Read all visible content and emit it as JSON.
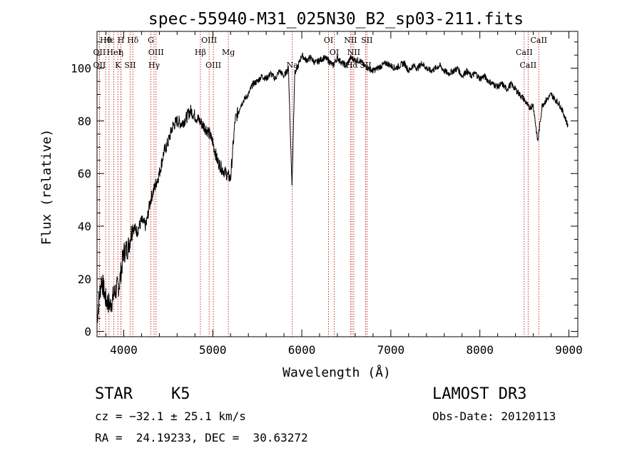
{
  "chart_data": {
    "type": "line",
    "title": "spec-55940-M31_025N30_B2_sp03-211.fits",
    "xlabel": "Wavelength (Å)",
    "ylabel": "Flux (relative)",
    "xlim": [
      3700,
      9100
    ],
    "ylim": [
      -2,
      114
    ],
    "xticks": [
      4000,
      5000,
      6000,
      7000,
      8000,
      9000
    ],
    "yticks": [
      0,
      20,
      40,
      60,
      80,
      100
    ],
    "grid": false,
    "series": [
      {
        "x": [
          3700,
          3750,
          3800,
          3850,
          3900,
          3950,
          4000,
          4050,
          4100,
          4150,
          4200,
          4250,
          4300,
          4350,
          4400,
          4450,
          4500,
          4550,
          4600,
          4650,
          4700,
          4750,
          4800,
          4850,
          4900,
          4950,
          5000,
          5050,
          5100,
          5150,
          5200,
          5250,
          5300,
          5350,
          5400,
          5450,
          5500,
          5550,
          5600,
          5650,
          5700,
          5750,
          5800,
          5850,
          5890,
          5920,
          5950,
          6000,
          6050,
          6100,
          6150,
          6200,
          6250,
          6300,
          6350,
          6400,
          6450,
          6500,
          6550,
          6600,
          6650,
          6700,
          6750,
          6800,
          6850,
          6900,
          6950,
          7000,
          7050,
          7100,
          7150,
          7200,
          7250,
          7300,
          7350,
          7400,
          7450,
          7500,
          7550,
          7600,
          7650,
          7700,
          7750,
          7800,
          7850,
          7900,
          7950,
          8000,
          8050,
          8100,
          8150,
          8200,
          8250,
          8300,
          8350,
          8400,
          8450,
          8500,
          8550,
          8600,
          8650,
          8700,
          8750,
          8800,
          8850,
          8900,
          8950,
          8990
        ],
        "y": [
          5,
          20,
          12,
          10,
          15,
          18,
          30,
          32,
          40,
          38,
          42,
          40,
          50,
          55,
          60,
          68,
          72,
          78,
          80,
          79,
          81,
          84,
          82,
          80,
          78,
          76,
          72,
          65,
          62,
          60,
          58,
          80,
          85,
          88,
          90,
          94,
          95,
          97,
          96,
          98,
          96,
          99,
          97,
          100,
          55,
          98,
          100,
          105,
          103,
          104,
          102,
          103,
          104,
          103,
          101,
          104,
          102,
          101,
          104,
          103,
          103,
          101,
          100,
          99,
          100,
          101,
          102,
          101,
          100,
          101,
          102,
          99,
          101,
          100,
          102,
          100,
          99,
          100,
          101,
          99,
          98,
          99,
          100,
          97,
          99,
          97,
          98,
          96,
          97,
          95,
          94,
          93,
          94,
          92,
          94,
          92,
          90,
          88,
          85,
          86,
          72,
          86,
          88,
          90,
          88,
          86,
          82,
          78
        ]
      }
    ],
    "lines": [
      {
        "label": "Hθ",
        "wave": 3797
      },
      {
        "label": "OII",
        "wave": 3727
      },
      {
        "label": "OII",
        "wave": 3727
      },
      {
        "label": "Hε",
        "wave": 3835
      },
      {
        "label": "HeI",
        "wave": 3889
      },
      {
        "label": "K",
        "wave": 3934
      },
      {
        "label": "H",
        "wave": 3969
      },
      {
        "label": "η",
        "wave": 3970
      },
      {
        "label": "SII",
        "wave": 4072
      },
      {
        "label": "Hδ",
        "wave": 4102
      },
      {
        "label": "OIII",
        "wave": 4363
      },
      {
        "label": "Hγ",
        "wave": 4341
      },
      {
        "label": "G",
        "wave": 4305
      },
      {
        "label": "Hβ",
        "wave": 4861
      },
      {
        "label": "OIII",
        "wave": 5007
      },
      {
        "label": "OIII",
        "wave": 4959
      },
      {
        "label": "Mg",
        "wave": 5175
      },
      {
        "label": "Na",
        "wave": 5893
      },
      {
        "label": "OI",
        "wave": 6300
      },
      {
        "label": "OI",
        "wave": 6364
      },
      {
        "label": "Hα",
        "wave": 6563
      },
      {
        "label": "NII",
        "wave": 6548
      },
      {
        "label": "NII",
        "wave": 6584
      },
      {
        "label": "SII",
        "wave": 6717
      },
      {
        "label": "SII",
        "wave": 6731
      },
      {
        "label": "CaII",
        "wave": 8498
      },
      {
        "label": "CaII",
        "wave": 8542
      },
      {
        "label": "CaII",
        "wave": 8662
      }
    ]
  },
  "info": {
    "class": "STAR",
    "subclass": "K5",
    "survey": "LAMOST DR3",
    "cz": "cz = −32.1 ± 25.1 km/s",
    "obsdate": "Obs-Date: 20120113",
    "radec": "RA =  24.19233, DEC =  30.63272"
  }
}
